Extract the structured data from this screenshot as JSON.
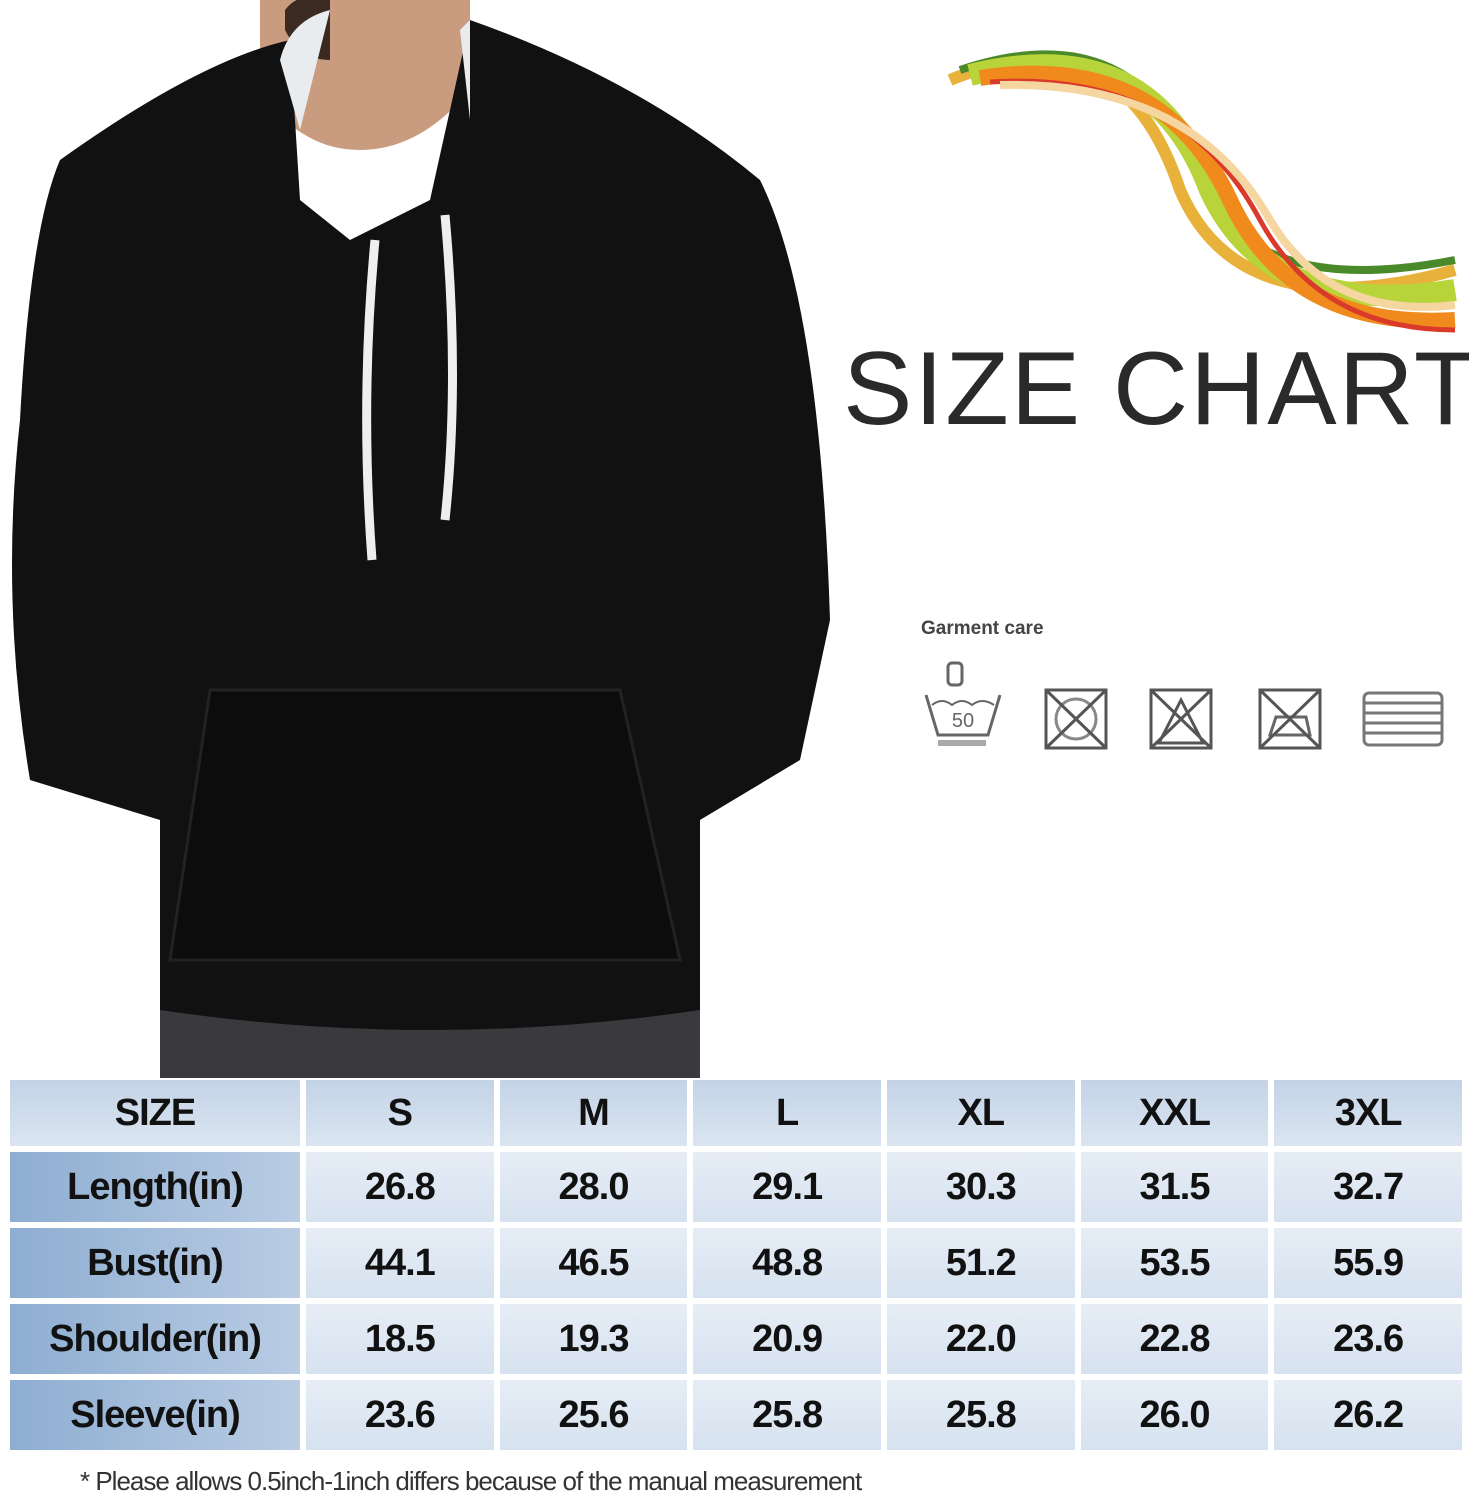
{
  "title": "SIZE CHART",
  "garment_care": {
    "label": "Garment care",
    "icons": [
      "hand-wash-50-icon",
      "do-not-tumble-dry-icon",
      "do-not-bleach-icon",
      "do-not-iron-icon",
      "dry-flat-icon"
    ]
  },
  "size_table": {
    "headers": [
      "SIZE",
      "S",
      "M",
      "L",
      "XL",
      "XXL",
      "3XL"
    ],
    "rows": [
      {
        "label": "Length(in)",
        "values": [
          "26.8",
          "28.0",
          "29.1",
          "30.3",
          "31.5",
          "32.7"
        ]
      },
      {
        "label": "Bust(in)",
        "values": [
          "44.1",
          "46.5",
          "48.8",
          "51.2",
          "53.5",
          "55.9"
        ]
      },
      {
        "label": "Shoulder(in)",
        "values": [
          "18.5",
          "19.3",
          "20.9",
          "22.0",
          "22.8",
          "23.6"
        ]
      },
      {
        "label": "Sleeve(in)",
        "values": [
          "23.6",
          "25.6",
          "25.8",
          "25.8",
          "26.0",
          "26.2"
        ]
      }
    ]
  },
  "footnote": "* Please  allows 0.5inch-1inch differs because  of  the manual measurement",
  "colors": {
    "header_bg": "#c8d7e9",
    "row_header_bg": "#9db8da",
    "cell_bg": "#dfe8f3",
    "hoodie": "#111111"
  }
}
